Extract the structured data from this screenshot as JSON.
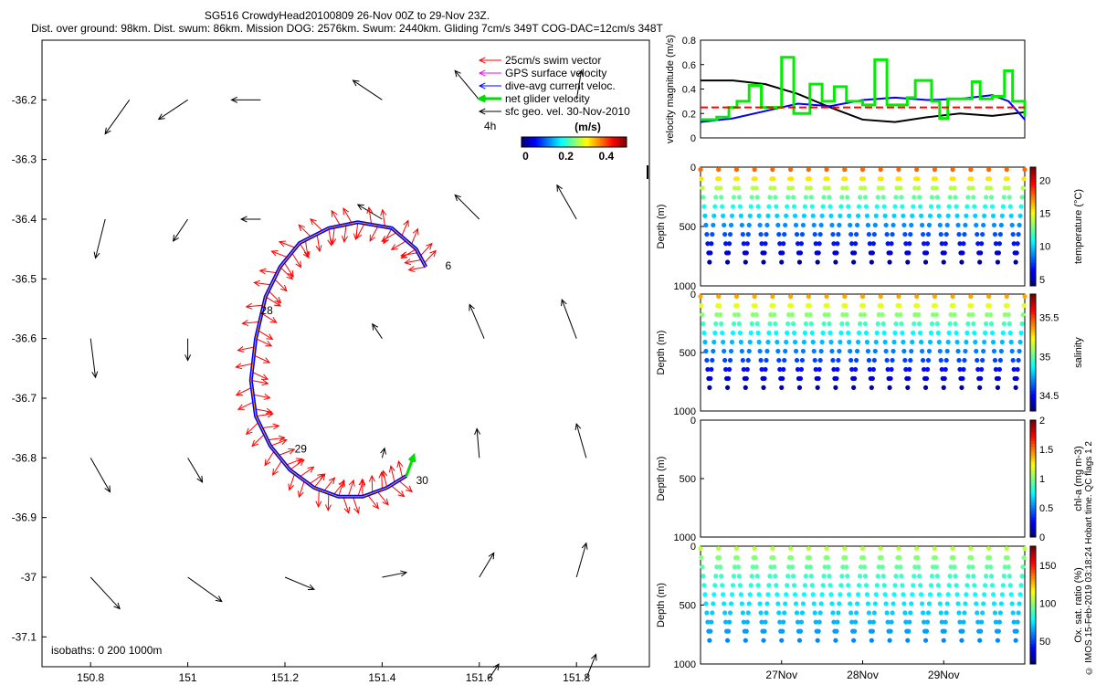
{
  "header": {
    "line1": "SG516 CrowdyHead20100809 26-Nov 00Z to 29-Nov 23Z.",
    "line2": "Dist. over ground: 98km. Dist. swum: 86km. Mission DOG: 2576km. Swum: 2440km. Gliding 7cm/s 349T COG-DAC=12cm/s 348T"
  },
  "credit": "© IMOS 15-Feb-2019 03:18:24 Hobart time. QC flags 1  2",
  "colors": {
    "swim": "#ff0000",
    "gps": "#ff00ff",
    "dac": "#0000ff",
    "net": "#00dd00",
    "geo": "#000000"
  },
  "chart_data": [
    {
      "type": "map",
      "xlim": [
        150.7,
        151.95
      ],
      "ylim": [
        -37.15,
        -36.1
      ],
      "x_ticks": [
        {
          "v": 150.8,
          "label": "150.8"
        },
        {
          "v": 151,
          "label": "151"
        },
        {
          "v": 151.2,
          "label": "151.2"
        },
        {
          "v": 151.4,
          "label": "151.4"
        },
        {
          "v": 151.6,
          "label": "151.6"
        },
        {
          "v": 151.8,
          "label": "151.8"
        }
      ],
      "y_ticks": [
        {
          "v": -36.2,
          "label": "-36.2"
        },
        {
          "v": -36.3,
          "label": "-36.3"
        },
        {
          "v": -36.4,
          "label": "-36.4"
        },
        {
          "v": -36.5,
          "label": "-36.5"
        },
        {
          "v": -36.6,
          "label": "-36.6"
        },
        {
          "v": -36.7,
          "label": "-36.7"
        },
        {
          "v": -36.8,
          "label": "-36.8"
        },
        {
          "v": -36.9,
          "label": "-36.9"
        },
        {
          "v": -37,
          "label": "-37"
        },
        {
          "v": -37.1,
          "label": "-37.1"
        }
      ],
      "legend": [
        {
          "label": "25cm/s swim vector",
          "color": "#ff0000",
          "bold": false
        },
        {
          "label": "GPS surface velocity",
          "color": "#ff00ff",
          "bold": false
        },
        {
          "label": "dive-avg current veloc.",
          "color": "#0000ff",
          "bold": false
        },
        {
          "label": "net glider velocity",
          "color": "#00dd00",
          "bold": true
        },
        {
          "label": "sfc geo. vel. 30-Nov-2010",
          "color": "#000000",
          "bold": false
        }
      ],
      "legend_position": "top-right",
      "tail_label": "4h",
      "colorbar": {
        "title": "(m/s)",
        "ticks": [
          {
            "v": 0,
            "label": "0"
          },
          {
            "v": 0.2,
            "label": "0.2"
          },
          {
            "v": 0.4,
            "label": "0.4"
          }
        ],
        "range": [
          -0.02,
          0.5
        ]
      },
      "isobaths_label": "isobaths: 0   200  1000m",
      "day_labels": [
        {
          "label": "6",
          "lon": 151.53,
          "lat": -36.478
        },
        {
          "label": "28",
          "lon": 151.15,
          "lat": -36.553
        },
        {
          "label": "29",
          "lon": 151.22,
          "lat": -36.785
        },
        {
          "label": "30",
          "lon": 151.47,
          "lat": -36.838
        }
      ],
      "track": [
        [
          151.49,
          -36.48
        ],
        [
          151.47,
          -36.45
        ],
        [
          151.42,
          -36.415
        ],
        [
          151.35,
          -36.405
        ],
        [
          151.29,
          -36.415
        ],
        [
          151.23,
          -36.44
        ],
        [
          151.19,
          -36.48
        ],
        [
          151.16,
          -36.53
        ],
        [
          151.14,
          -36.6
        ],
        [
          151.13,
          -36.67
        ],
        [
          151.14,
          -36.73
        ],
        [
          151.17,
          -36.78
        ],
        [
          151.21,
          -36.82
        ],
        [
          151.26,
          -36.85
        ],
        [
          151.31,
          -36.865
        ],
        [
          151.36,
          -36.865
        ],
        [
          151.41,
          -36.85
        ],
        [
          151.45,
          -36.83
        ]
      ],
      "geo_vectors": [
        [
          150.88,
          -36.2,
          -0.05,
          -0.07
        ],
        [
          151.0,
          -36.2,
          -0.06,
          -0.04
        ],
        [
          151.15,
          -36.2,
          -0.06,
          0.0
        ],
        [
          151.4,
          -36.2,
          -0.06,
          0.04
        ],
        [
          151.6,
          -36.2,
          -0.05,
          0.06
        ],
        [
          151.8,
          -36.2,
          0.01,
          0.06
        ],
        [
          150.83,
          -36.4,
          -0.02,
          -0.08
        ],
        [
          151.0,
          -36.4,
          -0.03,
          -0.045
        ],
        [
          151.15,
          -36.4,
          -0.04,
          0.0
        ],
        [
          151.4,
          -36.4,
          -0.05,
          0.03
        ],
        [
          151.6,
          -36.4,
          -0.05,
          0.05
        ],
        [
          151.8,
          -36.4,
          -0.04,
          0.07
        ],
        [
          151.61,
          -36.6,
          -0.03,
          0.07
        ],
        [
          151.8,
          -36.6,
          -0.03,
          0.08
        ],
        [
          151.4,
          -36.6,
          -0.02,
          0.03
        ],
        [
          150.8,
          -36.6,
          0.01,
          -0.08
        ],
        [
          151.0,
          -36.6,
          0.0,
          -0.045
        ],
        [
          150.8,
          -36.8,
          0.04,
          -0.07
        ],
        [
          151.0,
          -36.8,
          0.03,
          -0.05
        ],
        [
          151.6,
          -36.8,
          -0.005,
          0.06
        ],
        [
          151.82,
          -36.8,
          -0.02,
          0.07
        ],
        [
          151.4,
          -36.8,
          0.005,
          0.02
        ],
        [
          150.8,
          -37.0,
          0.06,
          -0.065
        ],
        [
          151.0,
          -37.0,
          0.07,
          -0.05
        ],
        [
          151.2,
          -37.0,
          0.06,
          -0.025
        ],
        [
          151.4,
          -37.0,
          0.05,
          0.01
        ],
        [
          151.6,
          -37.0,
          0.03,
          0.05
        ],
        [
          151.8,
          -37.0,
          0.02,
          0.07
        ],
        [
          151.62,
          -37.17,
          0.02,
          0.03
        ],
        [
          151.82,
          -37.17,
          0.02,
          0.05
        ]
      ]
    },
    {
      "type": "line",
      "ylabel": "velocity magnitude (m/s)",
      "xlim": [
        26.0,
        30.0
      ],
      "ylim": [
        0,
        0.8
      ],
      "y_ticks": [
        {
          "v": 0,
          "label": "0"
        },
        {
          "v": 0.2,
          "label": "0.2"
        },
        {
          "v": 0.4,
          "label": "0.4"
        },
        {
          "v": 0.6,
          "label": "0.6"
        },
        {
          "v": 0.8,
          "label": "0.8"
        }
      ],
      "series": [
        {
          "color": "#000000",
          "x": [
            26.0,
            26.4,
            26.8,
            27.2,
            27.6,
            28.0,
            28.4,
            28.8,
            29.2,
            29.6,
            30.0
          ],
          "values": [
            0.47,
            0.47,
            0.44,
            0.36,
            0.25,
            0.15,
            0.13,
            0.17,
            0.2,
            0.18,
            0.21
          ]
        },
        {
          "color": "#0000ff",
          "x": [
            26.0,
            26.4,
            26.8,
            27.2,
            27.6,
            28.0,
            28.4,
            28.8,
            29.2,
            29.6,
            29.8,
            30.0
          ],
          "values": [
            0.13,
            0.16,
            0.22,
            0.28,
            0.26,
            0.31,
            0.33,
            0.31,
            0.32,
            0.35,
            0.3,
            0.15
          ]
        },
        {
          "color": "#00ee00",
          "step": true,
          "x": [
            26.0,
            26.2,
            26.35,
            26.45,
            26.6,
            26.75,
            26.85,
            27.0,
            27.15,
            27.3,
            27.35,
            27.5,
            27.65,
            27.8,
            27.95,
            28.0,
            28.15,
            28.3,
            28.45,
            28.55,
            28.65,
            28.85,
            28.95,
            29.05,
            29.2,
            29.35,
            29.45,
            29.6,
            29.75,
            29.85,
            30.0
          ],
          "values": [
            0.15,
            0.17,
            0.25,
            0.3,
            0.43,
            0.25,
            0.25,
            0.66,
            0.2,
            0.2,
            0.44,
            0.3,
            0.42,
            0.3,
            0.3,
            0.27,
            0.64,
            0.27,
            0.27,
            0.33,
            0.47,
            0.3,
            0.16,
            0.32,
            0.32,
            0.46,
            0.32,
            0.34,
            0.55,
            0.3,
            0.18
          ]
        },
        {
          "color": "#ff0000",
          "dashed": true,
          "x": [
            26.0,
            30.0
          ],
          "values": [
            0.25,
            0.25
          ]
        }
      ]
    },
    {
      "type": "scatter",
      "ylabel": "Depth (m)",
      "ylim": [
        1000,
        0
      ],
      "y_ticks": [
        {
          "v": 0,
          "label": "0"
        },
        {
          "v": 500,
          "label": "500"
        },
        {
          "v": 1000,
          "label": "1000"
        }
      ],
      "colorbar": {
        "label": "temperature (°C)",
        "range": [
          4,
          22
        ],
        "ticks": [
          {
            "v": 5,
            "label": "5"
          },
          {
            "v": 10,
            "label": "10"
          },
          {
            "v": 15,
            "label": "15"
          },
          {
            "v": 20,
            "label": "20"
          }
        ]
      },
      "profile": {
        "dives": 18,
        "max_depth": 800,
        "surface": 19,
        "bottom": 4.5
      }
    },
    {
      "type": "scatter",
      "ylabel": "Depth (m)",
      "ylim": [
        1000,
        0
      ],
      "y_ticks": [
        {
          "v": 0,
          "label": "0"
        },
        {
          "v": 500,
          "label": "500"
        },
        {
          "v": 1000,
          "label": "1000"
        }
      ],
      "colorbar": {
        "label": "salinity",
        "range": [
          34.3,
          35.8
        ],
        "ticks": [
          {
            "v": 34.5,
            "label": "34.5"
          },
          {
            "v": 35,
            "label": "35"
          },
          {
            "v": 35.5,
            "label": "35.5"
          }
        ]
      },
      "profile": {
        "dives": 18,
        "max_depth": 800,
        "surface": 35.45,
        "bottom": 34.35
      }
    },
    {
      "type": "scatter",
      "ylabel": "Depth (m)",
      "ylim": [
        1000,
        0
      ],
      "y_ticks": [
        {
          "v": 0,
          "label": "0"
        },
        {
          "v": 500,
          "label": "500"
        },
        {
          "v": 1000,
          "label": "1000"
        }
      ],
      "colorbar": {
        "label": "chl-a (mg m-3)",
        "range": [
          0,
          2
        ],
        "ticks": [
          {
            "v": 0,
            "label": "0"
          },
          {
            "v": 0.5,
            "label": "0.5"
          },
          {
            "v": 1,
            "label": "1"
          },
          {
            "v": 1.5,
            "label": "1.5"
          },
          {
            "v": 2,
            "label": "2"
          }
        ]
      },
      "profile": null
    },
    {
      "type": "scatter",
      "ylabel": "Depth (m)",
      "ylim": [
        1000,
        0
      ],
      "y_ticks": [
        {
          "v": 0,
          "label": "0"
        },
        {
          "v": 500,
          "label": "500"
        },
        {
          "v": 1000,
          "label": "1000"
        }
      ],
      "colorbar": {
        "label": "Ox. sat. ratio (%)",
        "range": [
          20,
          175
        ],
        "ticks": [
          {
            "v": 50,
            "label": "50"
          },
          {
            "v": 100,
            "label": "100"
          },
          {
            "v": 150,
            "label": "150"
          }
        ]
      },
      "profile": {
        "dives": 18,
        "max_depth": 800,
        "surface": 110,
        "bottom": 60
      },
      "x_ticks": [
        {
          "v": 27,
          "label": "27Nov"
        },
        {
          "v": 28,
          "label": "28Nov"
        },
        {
          "v": 29,
          "label": "29Nov"
        }
      ]
    }
  ]
}
